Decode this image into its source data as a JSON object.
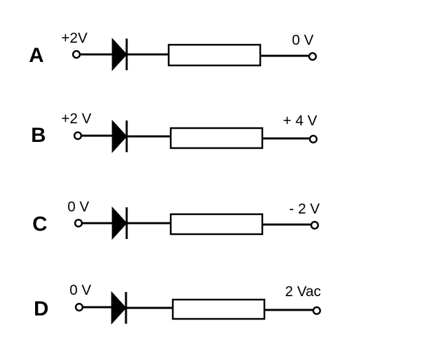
{
  "circuits": [
    {
      "letter": "A",
      "left_voltage": "+2V",
      "right_voltage": "0 V"
    },
    {
      "letter": "B",
      "left_voltage": "+2 V",
      "right_voltage": "+ 4 V"
    },
    {
      "letter": "C",
      "left_voltage": "0 V",
      "right_voltage": "- 2 V"
    },
    {
      "letter": "D",
      "left_voltage": "0 V",
      "right_voltage": "2 Vac"
    }
  ],
  "colors": {
    "stroke": "#000000",
    "background": "#ffffff"
  },
  "icons": {
    "diode": "diode-icon",
    "resistor": "resistor-icon",
    "terminal": "terminal-icon"
  }
}
